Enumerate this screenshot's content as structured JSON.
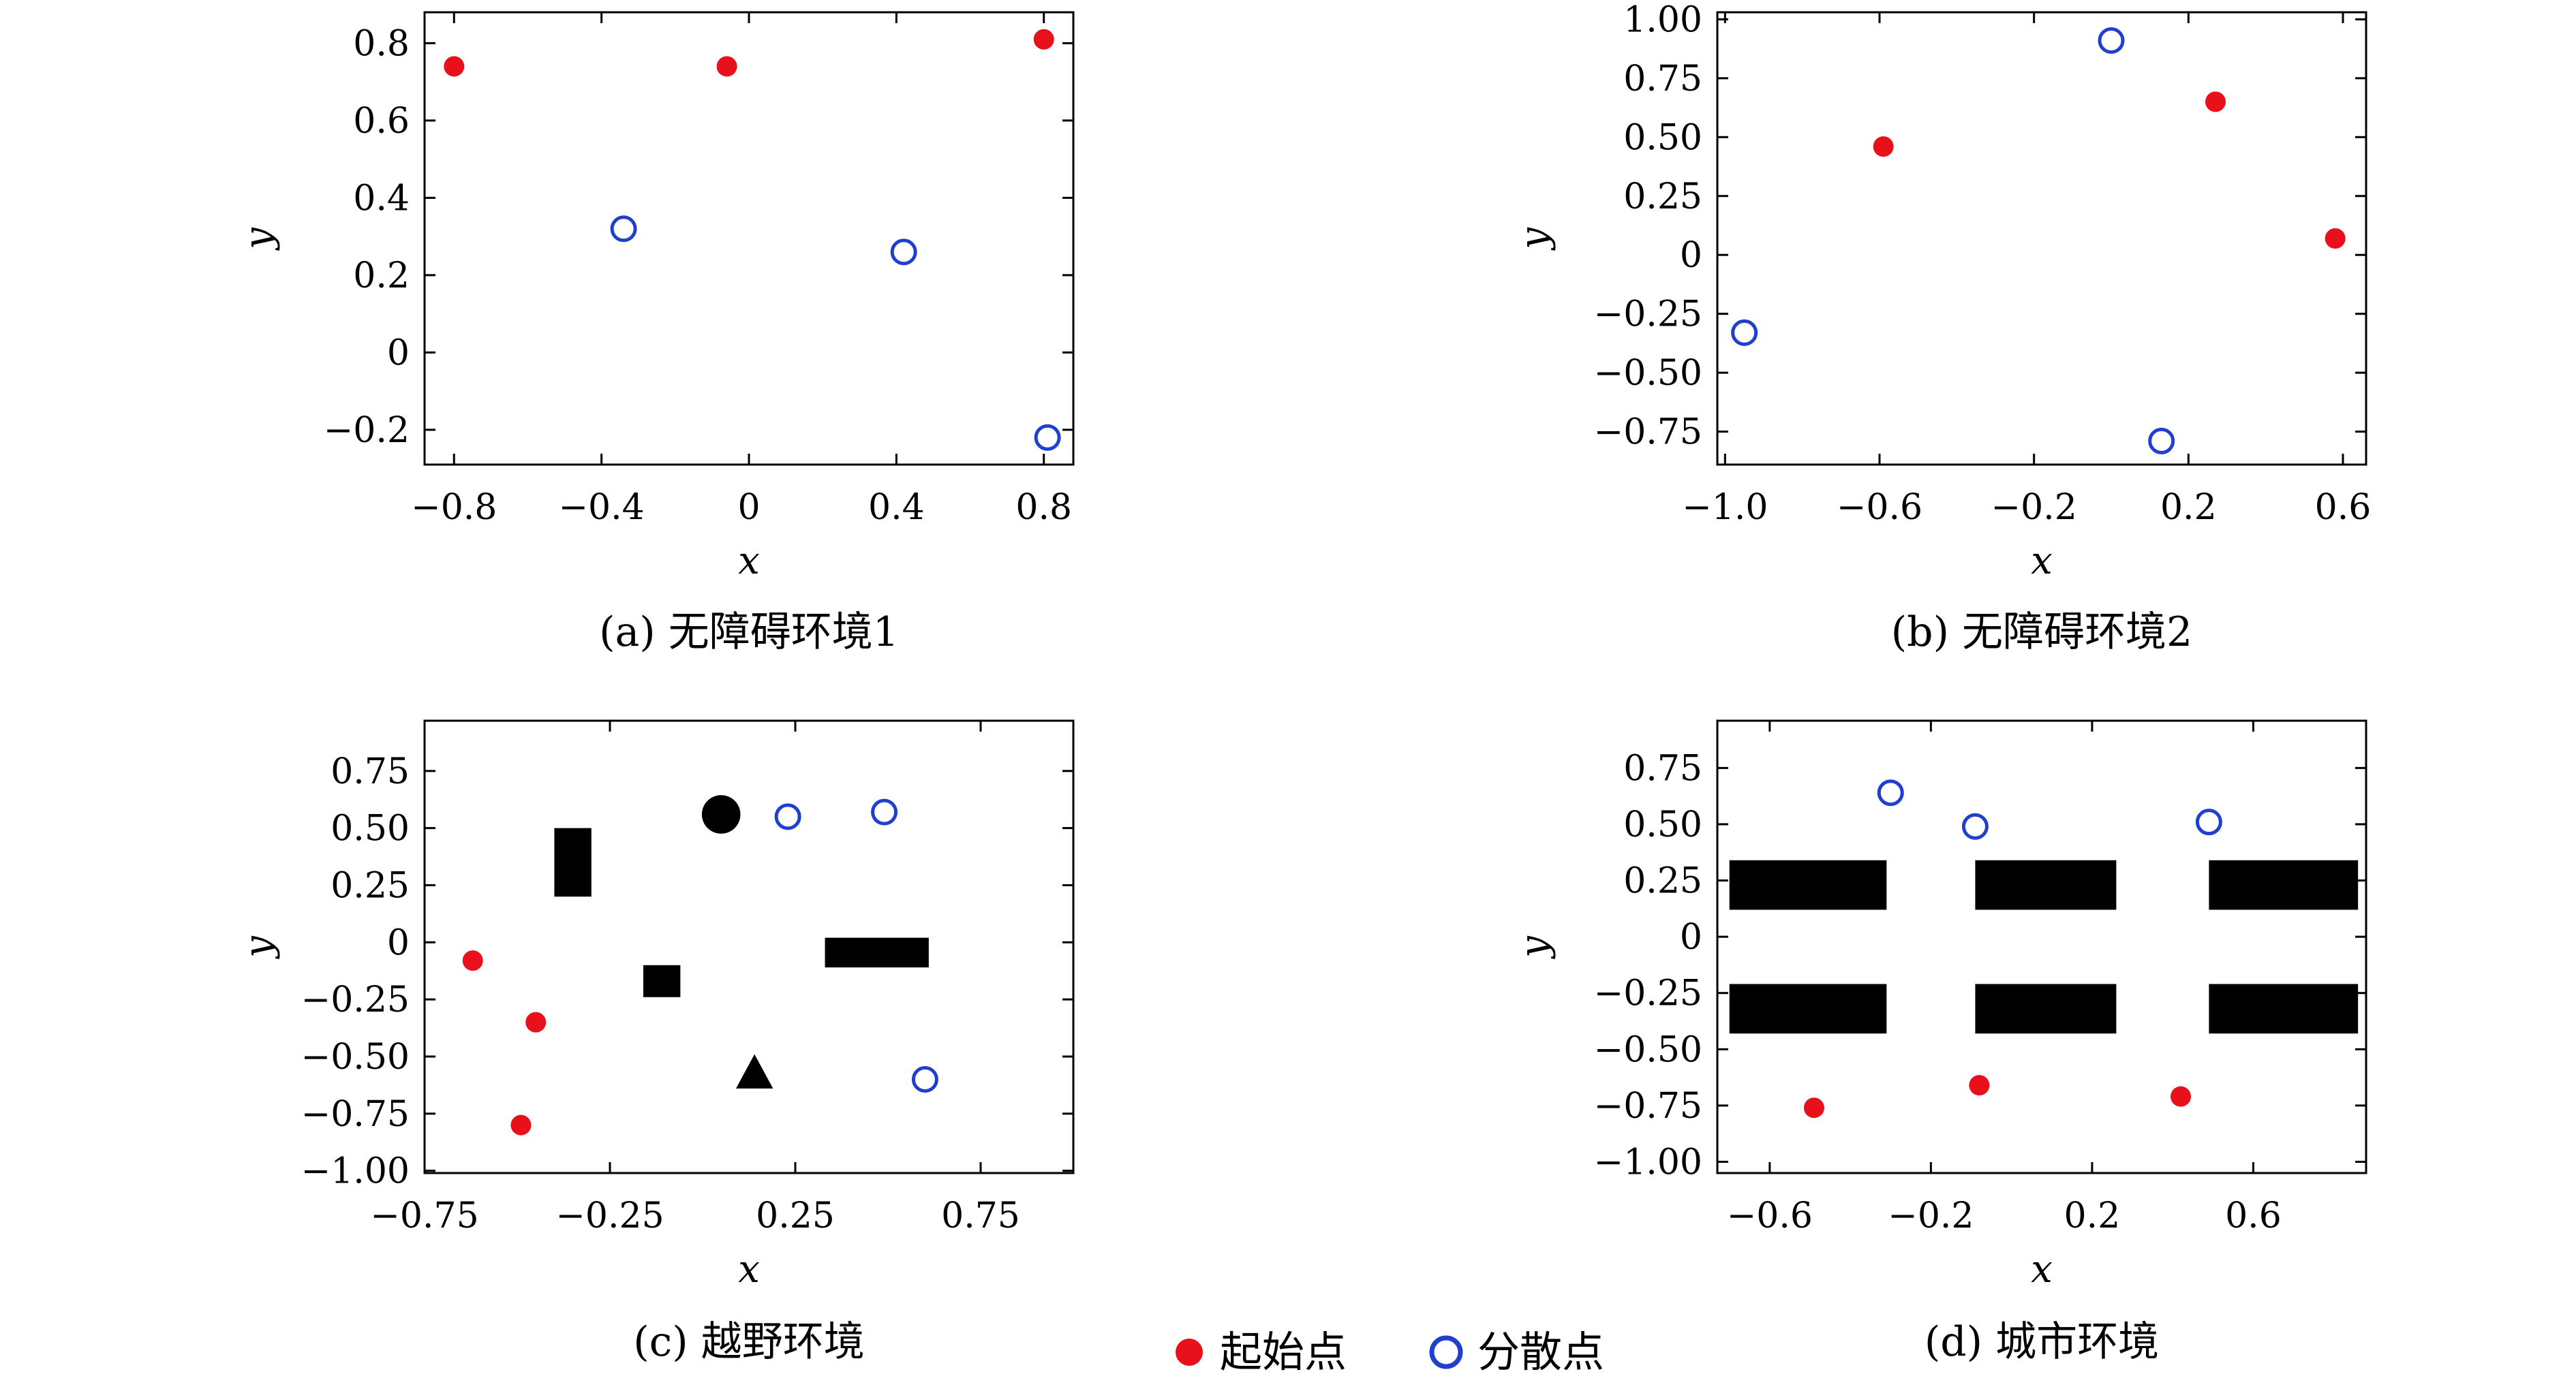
{
  "colors": {
    "start": "#e8101a",
    "scatter": "#1f3fcf",
    "obstacle": "#000000"
  },
  "legend": [
    {
      "label": "起始点",
      "marker": "filled-circle"
    },
    {
      "label": "分散点",
      "marker": "open-circle"
    }
  ],
  "chart_data": [
    {
      "type": "scatter",
      "caption": "(a) 无障碍环境1",
      "xlabel": "x",
      "ylabel": "y",
      "xlim": [
        -0.88,
        0.88
      ],
      "ylim": [
        -0.29,
        0.88
      ],
      "xticks": [
        -0.8,
        -0.4,
        0,
        0.4,
        0.8
      ],
      "xtick_labels": [
        "−0.8",
        "−0.4",
        "0",
        "0.4",
        "0.8"
      ],
      "yticks": [
        -0.2,
        0,
        0.2,
        0.4,
        0.6,
        0.8
      ],
      "ytick_labels": [
        "−0.2",
        "0",
        "0.2",
        "0.4",
        "0.6",
        "0.8"
      ],
      "series": [
        {
          "name": "起始点",
          "marker": "filled",
          "points": [
            [
              -0.8,
              0.74
            ],
            [
              -0.06,
              0.74
            ],
            [
              0.8,
              0.81
            ]
          ]
        },
        {
          "name": "分散点",
          "marker": "open",
          "points": [
            [
              -0.34,
              0.32
            ],
            [
              0.42,
              0.26
            ],
            [
              0.81,
              -0.22
            ]
          ]
        }
      ],
      "obstacles": []
    },
    {
      "type": "scatter",
      "caption": "(b) 无障碍环境2",
      "xlabel": "x",
      "ylabel": "y",
      "xlim": [
        -1.02,
        0.66
      ],
      "ylim": [
        -0.89,
        1.03
      ],
      "xticks": [
        -1.0,
        -0.6,
        -0.2,
        0.2,
        0.6
      ],
      "xtick_labels": [
        "−1.0",
        "−0.6",
        "−0.2",
        "0.2",
        "0.6"
      ],
      "yticks": [
        -0.75,
        -0.5,
        -0.25,
        0,
        0.25,
        0.5,
        0.75,
        1.0
      ],
      "ytick_labels": [
        "−0.75",
        "−0.50",
        "−0.25",
        "0",
        "0.25",
        "0.50",
        "0.75",
        "1.00"
      ],
      "series": [
        {
          "name": "起始点",
          "marker": "filled",
          "points": [
            [
              -0.59,
              0.46
            ],
            [
              0.27,
              0.65
            ],
            [
              0.58,
              0.07
            ]
          ]
        },
        {
          "name": "分散点",
          "marker": "open",
          "points": [
            [
              -0.95,
              -0.33
            ],
            [
              0.0,
              0.91
            ],
            [
              0.13,
              -0.79
            ]
          ]
        }
      ],
      "obstacles": []
    },
    {
      "type": "scatter",
      "caption": "(c) 越野环境",
      "xlabel": "x",
      "ylabel": "y",
      "xlim": [
        -0.75,
        1.0
      ],
      "ylim": [
        -1.01,
        0.97
      ],
      "xticks": [
        -0.75,
        -0.25,
        0.25,
        0.75
      ],
      "xtick_labels": [
        "−0.75",
        "−0.25",
        "0.25",
        "0.75"
      ],
      "yticks": [
        -1.0,
        -0.75,
        -0.5,
        -0.25,
        0,
        0.25,
        0.5,
        0.75
      ],
      "ytick_labels": [
        "−1.00",
        "−0.75",
        "−0.50",
        "−0.25",
        "0",
        "0.25",
        "0.50",
        "0.75"
      ],
      "series": [
        {
          "name": "起始点",
          "marker": "filled",
          "points": [
            [
              -0.62,
              -0.08
            ],
            [
              -0.45,
              -0.35
            ],
            [
              -0.49,
              -0.8
            ]
          ]
        },
        {
          "name": "分散点",
          "marker": "open",
          "points": [
            [
              0.23,
              0.55
            ],
            [
              0.49,
              0.57
            ],
            [
              0.6,
              -0.6
            ]
          ]
        }
      ],
      "obstacles": [
        {
          "shape": "rect",
          "x0": -0.4,
          "x1": -0.3,
          "y0": 0.2,
          "y1": 0.5
        },
        {
          "shape": "circle",
          "cx": 0.05,
          "cy": 0.56,
          "r": 0.052
        },
        {
          "shape": "rect",
          "x0": -0.16,
          "x1": -0.06,
          "y0": -0.24,
          "y1": -0.1
        },
        {
          "shape": "rect",
          "x0": 0.33,
          "x1": 0.61,
          "y0": -0.11,
          "y1": 0.02
        },
        {
          "shape": "triangle",
          "cx": 0.14,
          "y0": -0.64,
          "y1": -0.49,
          "half_width": 0.05
        }
      ]
    },
    {
      "type": "scatter",
      "caption": "(d) 城市环境",
      "xlabel": "x",
      "ylabel": "y",
      "xlim": [
        -0.73,
        0.88
      ],
      "ylim": [
        -1.05,
        0.96
      ],
      "xticks": [
        -0.6,
        -0.2,
        0.2,
        0.6
      ],
      "xtick_labels": [
        "−0.6",
        "−0.2",
        "0.2",
        "0.6"
      ],
      "yticks": [
        -1.0,
        -0.75,
        -0.5,
        -0.25,
        0,
        0.25,
        0.5,
        0.75
      ],
      "ytick_labels": [
        "−1.00",
        "−0.75",
        "−0.50",
        "−0.25",
        "0",
        "0.25",
        "0.50",
        "0.75"
      ],
      "series": [
        {
          "name": "起始点",
          "marker": "filled",
          "points": [
            [
              -0.49,
              -0.76
            ],
            [
              -0.08,
              -0.66
            ],
            [
              0.42,
              -0.71
            ]
          ]
        },
        {
          "name": "分散点",
          "marker": "open",
          "points": [
            [
              -0.3,
              0.64
            ],
            [
              -0.09,
              0.49
            ],
            [
              0.49,
              0.51
            ]
          ]
        }
      ],
      "obstacles": [
        {
          "shape": "rect",
          "x0": -0.7,
          "x1": -0.31,
          "y0": 0.12,
          "y1": 0.34
        },
        {
          "shape": "rect",
          "x0": -0.09,
          "x1": 0.26,
          "y0": 0.12,
          "y1": 0.34
        },
        {
          "shape": "rect",
          "x0": 0.49,
          "x1": 0.86,
          "y0": 0.12,
          "y1": 0.34
        },
        {
          "shape": "rect",
          "x0": -0.7,
          "x1": -0.31,
          "y0": -0.43,
          "y1": -0.21
        },
        {
          "shape": "rect",
          "x0": -0.09,
          "x1": 0.26,
          "y0": -0.43,
          "y1": -0.21
        },
        {
          "shape": "rect",
          "x0": 0.49,
          "x1": 0.86,
          "y0": -0.43,
          "y1": -0.21
        }
      ]
    }
  ]
}
